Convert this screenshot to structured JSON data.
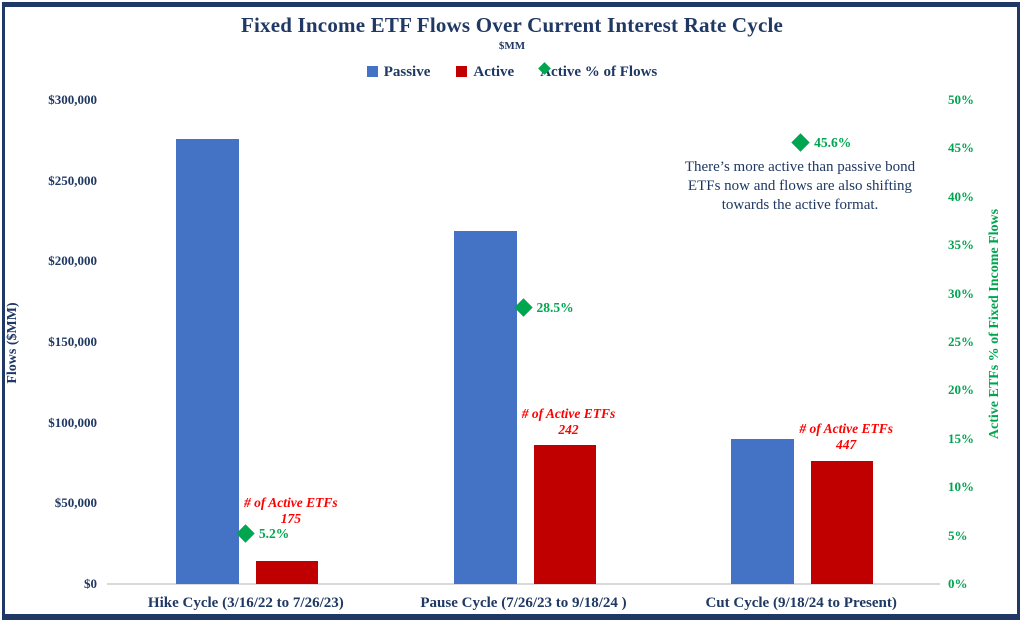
{
  "header": {
    "title": "Fixed Income ETF Flows Over Current Interest Rate Cycle",
    "subtitle": "$MM"
  },
  "legend": {
    "items": [
      {
        "label": "Passive",
        "marker": "square",
        "color": "#4472C4"
      },
      {
        "label": "Active",
        "marker": "square",
        "color": "#C00000"
      },
      {
        "label": "Active % of Flows",
        "marker": "diamond",
        "color": "#00A550"
      }
    ]
  },
  "annotation": {
    "text": "There’s more active than passive bond ETFs now and flows are also shifting towards the active format."
  },
  "colors": {
    "navy": "#1F3864",
    "passive_blue": "#4472C4",
    "active_red": "#C00000",
    "green": "#00A550",
    "count_label_red": "#FF0000",
    "baseline_gray": "#D9D9D9"
  },
  "chart_data": {
    "type": "bar",
    "subtype": "grouped-bar-with-scatter-diamonds",
    "title": "Fixed Income ETF Flows Over Current Interest Rate Cycle",
    "subtitle": "$MM",
    "categories": [
      "Hike Cycle (3/16/22 to 7/26/23)",
      "Pause Cycle (7/26/23 to 9/18/24 )",
      "Cut Cycle (9/18/24 to Present)"
    ],
    "series": [
      {
        "name": "Passive",
        "type": "bar",
        "axis": "left",
        "color": "#4472C4",
        "values": [
          276000,
          219000,
          90000
        ]
      },
      {
        "name": "Active",
        "type": "bar",
        "axis": "left",
        "color": "#C00000",
        "values": [
          14000,
          86000,
          76000
        ]
      },
      {
        "name": "Active % of Flows",
        "type": "scatter",
        "marker": "diamond",
        "axis": "right",
        "color": "#00A550",
        "values": [
          5.2,
          28.5,
          45.6
        ],
        "point_labels": [
          "5.2%",
          "28.5%",
          "45.6%"
        ]
      }
    ],
    "count_labels": {
      "heading": "# of Active ETFs",
      "counts": [
        "175",
        "242",
        "447"
      ]
    },
    "left_axis": {
      "label": "Flows ($MM)",
      "min": 0,
      "max": 300000,
      "ticks": [
        "$300,000",
        "$250,000",
        "$200,000",
        "$150,000",
        "$100,000",
        "$50,000",
        "$0"
      ]
    },
    "right_axis": {
      "label": "Active ETFs % of Fixed Income Flows",
      "min": 0,
      "max": 50,
      "ticks": [
        "50%",
        "45%",
        "40%",
        "35%",
        "30%",
        "25%",
        "20%",
        "15%",
        "10%",
        "5%",
        "0%"
      ]
    },
    "grid": false,
    "legend_position": "top-center"
  }
}
